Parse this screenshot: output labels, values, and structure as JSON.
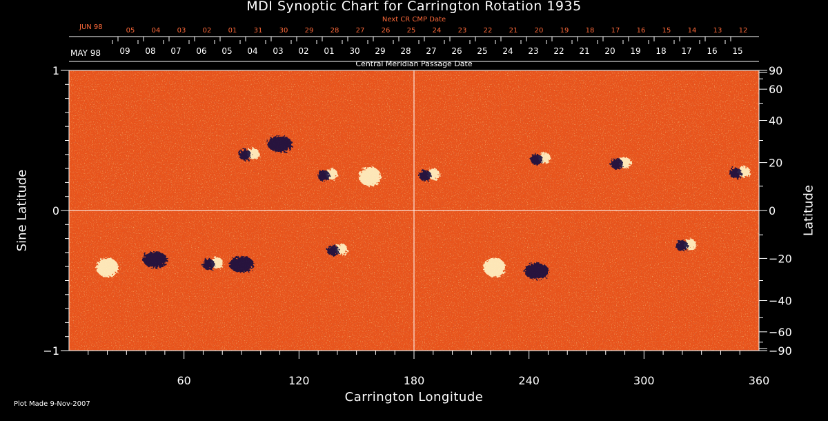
{
  "title": "MDI Synoptic Chart for Carrington Rotation 1935",
  "next_cr_label": "Next CR CMP Date",
  "next_cr_month": "JUN 98",
  "next_cr_days": [
    "05",
    "04",
    "03",
    "02",
    "01",
    "31",
    "30",
    "29",
    "28",
    "27",
    "26",
    "25",
    "24",
    "23",
    "22",
    "21",
    "20",
    "19",
    "18",
    "17",
    "16",
    "15",
    "14",
    "13",
    "12"
  ],
  "current_month": "MAY 98",
  "current_days": [
    "09",
    "08",
    "07",
    "06",
    "05",
    "04",
    "03",
    "02",
    "01",
    "30",
    "29",
    "28",
    "27",
    "26",
    "25",
    "24",
    "23",
    "22",
    "21",
    "20",
    "19",
    "18",
    "17",
    "16",
    "15"
  ],
  "cmp_date_label": "Central Meridian Passage Date",
  "plot_made": "Plot Made  9-Nov-2007",
  "colors": {
    "background": "#000000",
    "photosphere": "#e8541c",
    "positive_polarity": "#fff6c8",
    "negative_polarity": "#1a1040",
    "next_cr_text": "#ff6a3a",
    "axes": "#ffffff"
  },
  "chart_data": {
    "type": "heatmap",
    "xlabel": "Carrington Longitude",
    "ylabel_left": "Sine Latitude",
    "ylabel_right": "Latitude",
    "xlim": [
      0,
      360
    ],
    "ylim_sine": [
      -1,
      1
    ],
    "x_ticks": [
      60,
      120,
      180,
      240,
      300,
      360
    ],
    "y_ticks_sine_labels": [
      "1",
      "0",
      "−1"
    ],
    "y_ticks_sine_values": [
      1,
      0,
      -1
    ],
    "y_ticks_latitude": [
      90,
      60,
      40,
      20,
      0,
      -20,
      -40,
      -60,
      -90
    ],
    "y_tick_latitude_labels": [
      "90",
      "60",
      "40",
      "20",
      "0",
      "−20",
      "−40",
      "−60",
      "−90"
    ],
    "reference_lines": {
      "longitude": 180,
      "sine_latitude": 0
    },
    "active_regions": [
      {
        "lon": 94,
        "lat": 24,
        "polarity": "mixed"
      },
      {
        "lon": 110,
        "lat": 29,
        "polarity": "negative"
      },
      {
        "lon": 135,
        "lat": 15,
        "polarity": "mixed"
      },
      {
        "lon": 157,
        "lat": 14,
        "polarity": "positive"
      },
      {
        "lon": 188,
        "lat": 15,
        "polarity": "mixed"
      },
      {
        "lon": 246,
        "lat": 22,
        "polarity": "mixed"
      },
      {
        "lon": 288,
        "lat": 20,
        "polarity": "mixed"
      },
      {
        "lon": 350,
        "lat": 16,
        "polarity": "mixed"
      },
      {
        "lon": 20,
        "lat": -24,
        "polarity": "positive"
      },
      {
        "lon": 45,
        "lat": -20,
        "polarity": "negative"
      },
      {
        "lon": 75,
        "lat": -22,
        "polarity": "mixed"
      },
      {
        "lon": 90,
        "lat": -22,
        "polarity": "negative"
      },
      {
        "lon": 140,
        "lat": -16,
        "polarity": "mixed"
      },
      {
        "lon": 222,
        "lat": -24,
        "polarity": "positive"
      },
      {
        "lon": 244,
        "lat": -25,
        "polarity": "negative"
      },
      {
        "lon": 322,
        "lat": -14,
        "polarity": "mixed"
      }
    ]
  }
}
